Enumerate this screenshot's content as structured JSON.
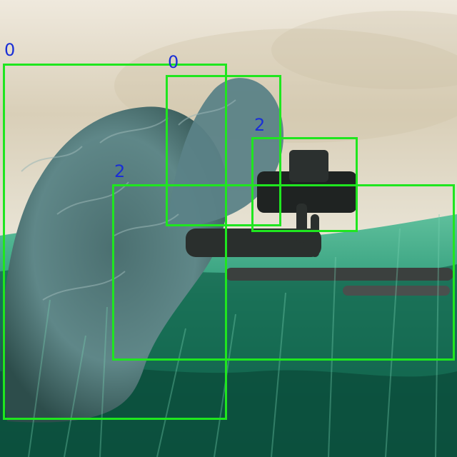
{
  "image": {
    "description_colors": {
      "sky_light": "#f2eee4",
      "sky_warm": "#d7ccb3",
      "grass_dark": "#0f5a45",
      "grass_mid": "#2f9a7a",
      "grass_light": "#6cc7a6",
      "ghillie": "#6f8f8f",
      "equipment": "#2a2f2d"
    }
  },
  "detections": [
    {
      "label": "0",
      "box_color": "#1fe61f",
      "label_color": "#1a2fd6"
    },
    {
      "label": "0",
      "box_color": "#1fe61f",
      "label_color": "#1a2fd6"
    },
    {
      "label": "2",
      "box_color": "#1fe61f",
      "label_color": "#1a2fd6"
    },
    {
      "label": "2",
      "box_color": "#1fe61f",
      "label_color": "#1a2fd6"
    }
  ]
}
